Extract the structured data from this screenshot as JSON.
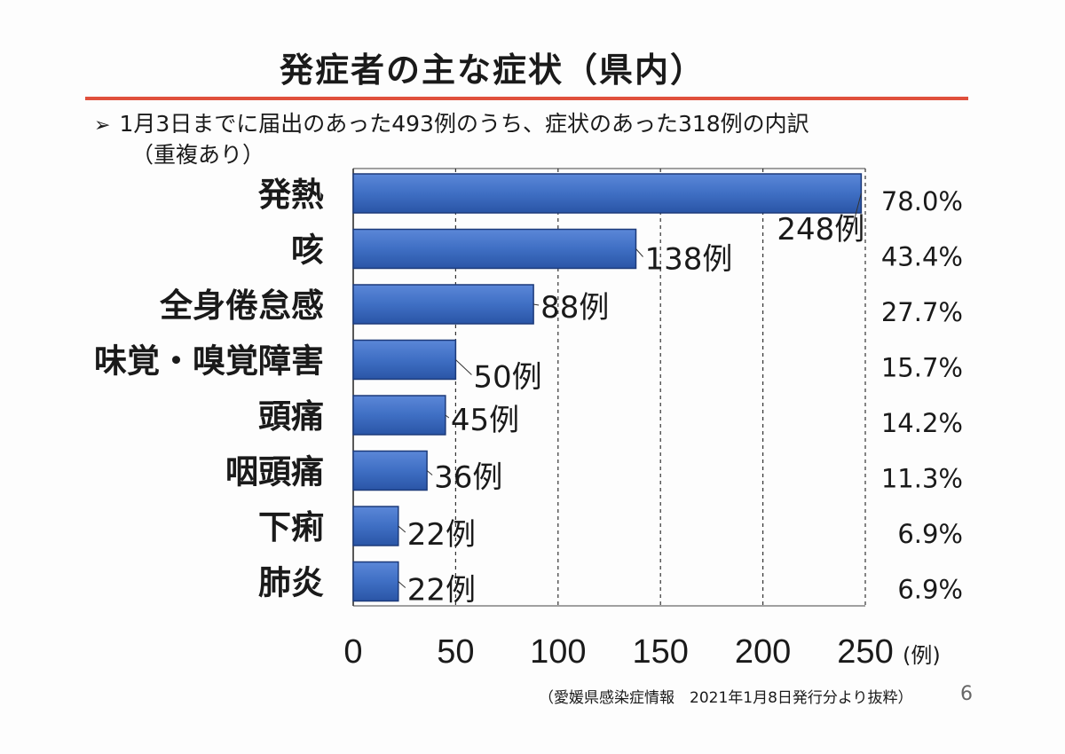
{
  "slide": {
    "title": "発症者の主な症状（県内）",
    "note_line1": "1月3日までに届出のあった493例のうち、症状のあった318例の内訳",
    "note_line2": "（重複あり）",
    "source": "（愛媛県感染症情報　2021年1月8日発行分より抜粋）",
    "page_number": "6"
  },
  "colors": {
    "accent_rule": "#e0503c",
    "bar_fill": "#3f6fc4",
    "bar_edge": "#1c3a7a"
  },
  "chart_data": {
    "type": "bar",
    "orientation": "horizontal",
    "categories": [
      "発熱",
      "咳",
      "全身倦怠感",
      "味覚・嗅覚障害",
      "頭痛",
      "咽頭痛",
      "下痢",
      "肺炎"
    ],
    "values": [
      248,
      138,
      88,
      50,
      45,
      36,
      22,
      22
    ],
    "value_labels": [
      "248例",
      "138例",
      "88例",
      "50例",
      "45例",
      "36例",
      "22例",
      "22例"
    ],
    "percent_labels": [
      "78.0%",
      "43.4%",
      "27.7%",
      "15.7%",
      "14.2%",
      "11.3%",
      "6.9%",
      "6.9%"
    ],
    "xlim": [
      0,
      250
    ],
    "xticks": [
      0,
      50,
      100,
      150,
      200,
      250
    ],
    "xtick_labels": [
      "0",
      "50",
      "100",
      "150",
      "200",
      "250"
    ],
    "x_unit": "(例)",
    "grid": "vertical dashed"
  }
}
